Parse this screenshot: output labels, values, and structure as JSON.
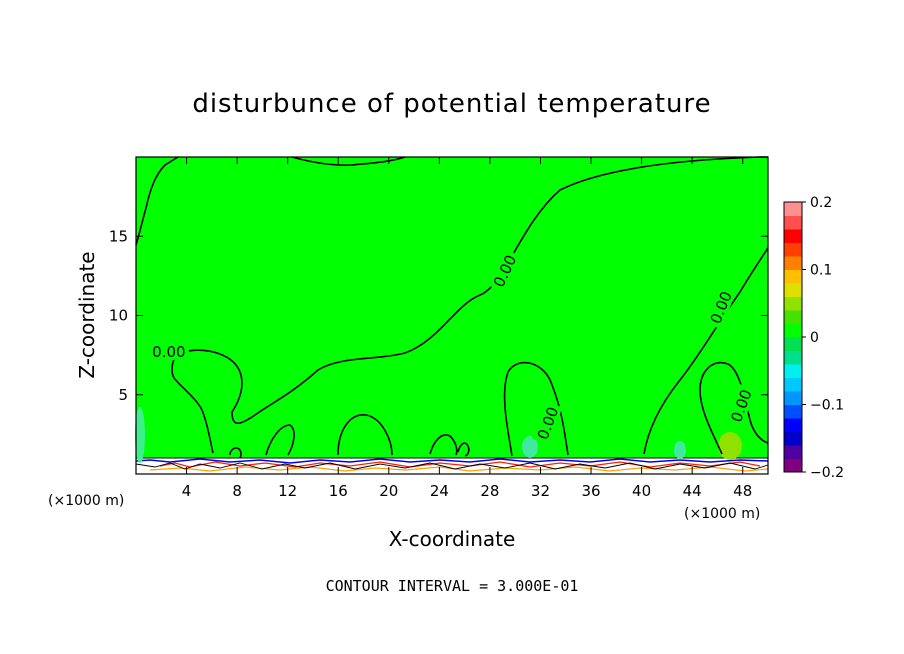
{
  "chart_data": {
    "type": "contour",
    "title": "disturbunce of potential temperature",
    "xlabel": "X-coordinate",
    "ylabel": "Z-coordinate",
    "x_units": "(×1000 m)",
    "xlim": [
      0,
      50
    ],
    "ylim": [
      0,
      20
    ],
    "x_ticks": [
      4,
      8,
      12,
      16,
      20,
      24,
      28,
      32,
      36,
      40,
      44,
      48
    ],
    "y_ticks": [
      5,
      10,
      15
    ],
    "colorbar": {
      "min": -0.2,
      "max": 0.2,
      "tick_values": [
        0.2,
        0.1,
        0,
        -0.1,
        -0.2
      ],
      "tick_labels": [
        "0.2",
        "0.1",
        "0",
        "−0.1",
        "−0.2"
      ],
      "colors": [
        "#800080",
        "#5000a0",
        "#0000c8",
        "#0000ff",
        "#0050ff",
        "#0096ff",
        "#00c8ff",
        "#00f0f0",
        "#00e08c",
        "#00e050",
        "#00ff00",
        "#48e000",
        "#90e000",
        "#e0e000",
        "#ffc000",
        "#ff8000",
        "#ff4000",
        "#ff0000",
        "#ff5050",
        "#ff9090"
      ]
    },
    "background_level": 0,
    "contour_labels": [
      {
        "x": 2.6,
        "z": 7.7,
        "text": "0.00",
        "angle": 0
      },
      {
        "x": 29.2,
        "z": 12.8,
        "text": "0.00",
        "angle": -65
      },
      {
        "x": 32.6,
        "z": 3.2,
        "text": "0.00",
        "angle": -70
      },
      {
        "x": 46.3,
        "z": 10.5,
        "text": "0.00",
        "angle": -68
      },
      {
        "x": 47.9,
        "z": 4.3,
        "text": "0.00",
        "angle": -70
      }
    ],
    "contour_interval_label": "CONTOUR INTERVAL = 3.000E-01"
  }
}
